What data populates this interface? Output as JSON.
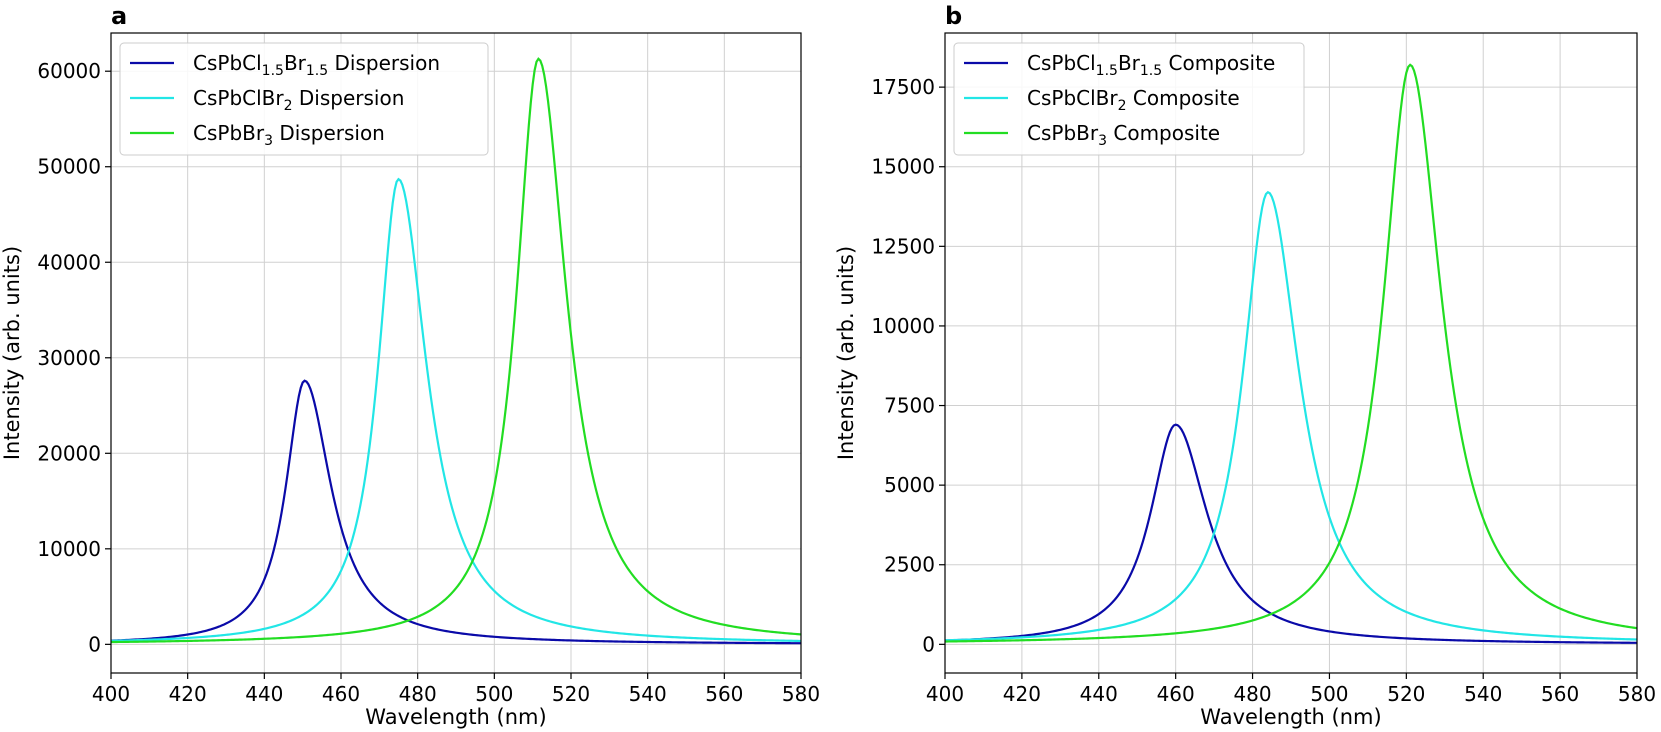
{
  "chart_data": [
    {
      "panel": "a",
      "type": "line",
      "title": "",
      "xlabel": "Wavelength (nm)",
      "ylabel": "Intensity (arb. units)",
      "xlim": [
        400,
        580
      ],
      "ylim": [
        -3000,
        64000
      ],
      "xticks": [
        400,
        420,
        440,
        460,
        480,
        500,
        520,
        540,
        560,
        580
      ],
      "yticks": [
        0,
        10000,
        20000,
        30000,
        40000,
        50000,
        60000
      ],
      "grid": true,
      "legend_position": "top-left",
      "series": [
        {
          "name": "CsPbCl1.5Br1.5 Dispersion",
          "legend": {
            "base": "CsPbCl",
            "sub1": "1.5",
            "mid": "Br",
            "sub2": "1.5",
            "tail": " Dispersion"
          },
          "color": "#0a0aa8",
          "peak_x": 450.5,
          "peak_y": 27600,
          "hwhm_left": 6.0,
          "hwhm_right": 8.5
        },
        {
          "name": "CsPbClBr2 Dispersion",
          "legend": {
            "base": "CsPbClBr",
            "sub1": "2",
            "mid": "",
            "sub2": "",
            "tail": " Dispersion"
          },
          "color": "#22e6e6",
          "peak_x": 475,
          "peak_y": 48700,
          "hwhm_left": 6.5,
          "hwhm_right": 9.0
        },
        {
          "name": "CsPbBr3 Dispersion",
          "legend": {
            "base": "CsPbBr",
            "sub1": "3",
            "mid": "",
            "sub2": "",
            "tail": " Dispersion"
          },
          "color": "#22dd22",
          "peak_x": 511.5,
          "peak_y": 61300,
          "hwhm_left": 7.0,
          "hwhm_right": 9.0
        }
      ]
    },
    {
      "panel": "b",
      "type": "line",
      "title": "",
      "xlabel": "Wavelength (nm)",
      "ylabel": "Intensity (arb. units)",
      "xlim": [
        400,
        580
      ],
      "ylim": [
        -900,
        19200
      ],
      "xticks": [
        400,
        420,
        440,
        460,
        480,
        500,
        520,
        540,
        560,
        580
      ],
      "yticks": [
        0,
        2500,
        5000,
        7500,
        10000,
        12500,
        15000,
        17500
      ],
      "grid": true,
      "legend_position": "top-left",
      "series": [
        {
          "name": "CsPbCl1.5Br1.5 Composite",
          "legend": {
            "base": "CsPbCl",
            "sub1": "1.5",
            "mid": "Br",
            "sub2": "1.5",
            "tail": " Composite"
          },
          "color": "#0a0aa8",
          "peak_x": 460,
          "peak_y": 6900,
          "hwhm_left": 8.0,
          "hwhm_right": 10.0
        },
        {
          "name": "CsPbClBr2 Composite",
          "legend": {
            "base": "CsPbClBr",
            "sub1": "2",
            "mid": "",
            "sub2": "",
            "tail": " Composite"
          },
          "color": "#22e6e6",
          "peak_x": 484,
          "peak_y": 14200,
          "hwhm_left": 8.0,
          "hwhm_right": 10.0
        },
        {
          "name": "CsPbBr3 Composite",
          "legend": {
            "base": "CsPbBr",
            "sub1": "3",
            "mid": "",
            "sub2": "",
            "tail": " Composite"
          },
          "color": "#22dd22",
          "peak_x": 521,
          "peak_y": 18200,
          "hwhm_left": 8.5,
          "hwhm_right": 10.0
        }
      ]
    }
  ]
}
